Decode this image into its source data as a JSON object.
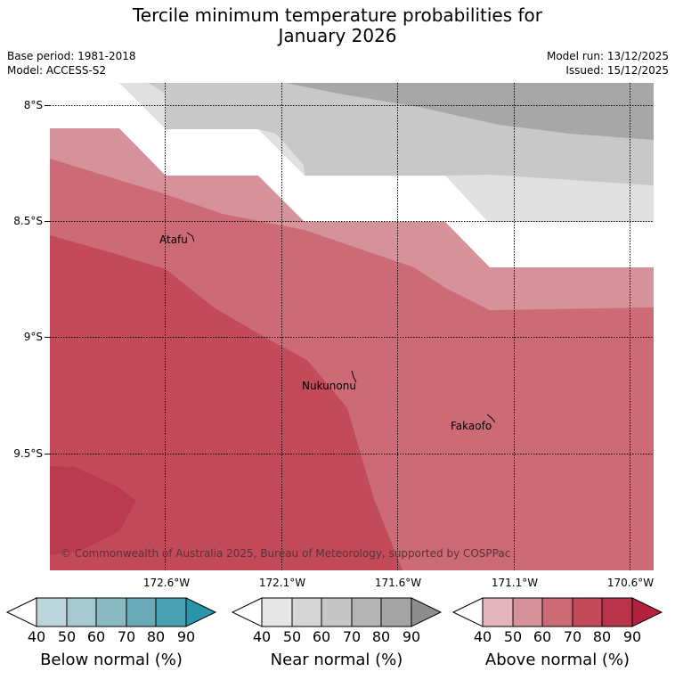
{
  "header": {
    "title_line1": "Tercile minimum temperature probabilities for",
    "title_line2": "January 2026",
    "base_period": "Base period: 1981-2018",
    "model": "Model: ACCESS-S2",
    "model_run": "Model run: 13/12/2025",
    "issued": "Issued: 15/12/2025"
  },
  "map": {
    "lat_labels": [
      "8°S",
      "8.5°S",
      "9°S",
      "9.5°S"
    ],
    "lon_labels": [
      "172.6°W",
      "172.1°W",
      "171.6°W",
      "171.1°W",
      "170.6°W"
    ],
    "places": [
      {
        "name": "Atafu"
      },
      {
        "name": "Nukunonu"
      },
      {
        "name": "Fakaofo"
      }
    ],
    "copyright": "© Commonwealth of Australia 2025, Bureau of Meteorology, supported by COSPPac"
  },
  "colorbars": [
    {
      "label": "Below normal (%)",
      "ticks": [
        "40",
        "50",
        "60",
        "70",
        "80",
        "90"
      ],
      "colors": [
        "#ffffff",
        "#bcd5da",
        "#a5c9cf",
        "#8ab9c3",
        "#6aa9b7",
        "#46a0b0",
        "#2a95a8"
      ]
    },
    {
      "label": "Near normal (%)",
      "ticks": [
        "40",
        "50",
        "60",
        "70",
        "80",
        "90"
      ],
      "colors": [
        "#ffffff",
        "#e6e6e6",
        "#d6d6d6",
        "#c6c6c6",
        "#b5b5b5",
        "#a4a4a4",
        "#8e8e8e"
      ]
    },
    {
      "label": "Above normal (%)",
      "ticks": [
        "40",
        "50",
        "60",
        "70",
        "80",
        "90"
      ],
      "colors": [
        "#ffffff",
        "#e2b6bc",
        "#d6929a",
        "#cc6b76",
        "#c24a59",
        "#b9334a",
        "#b52040"
      ]
    }
  ]
}
